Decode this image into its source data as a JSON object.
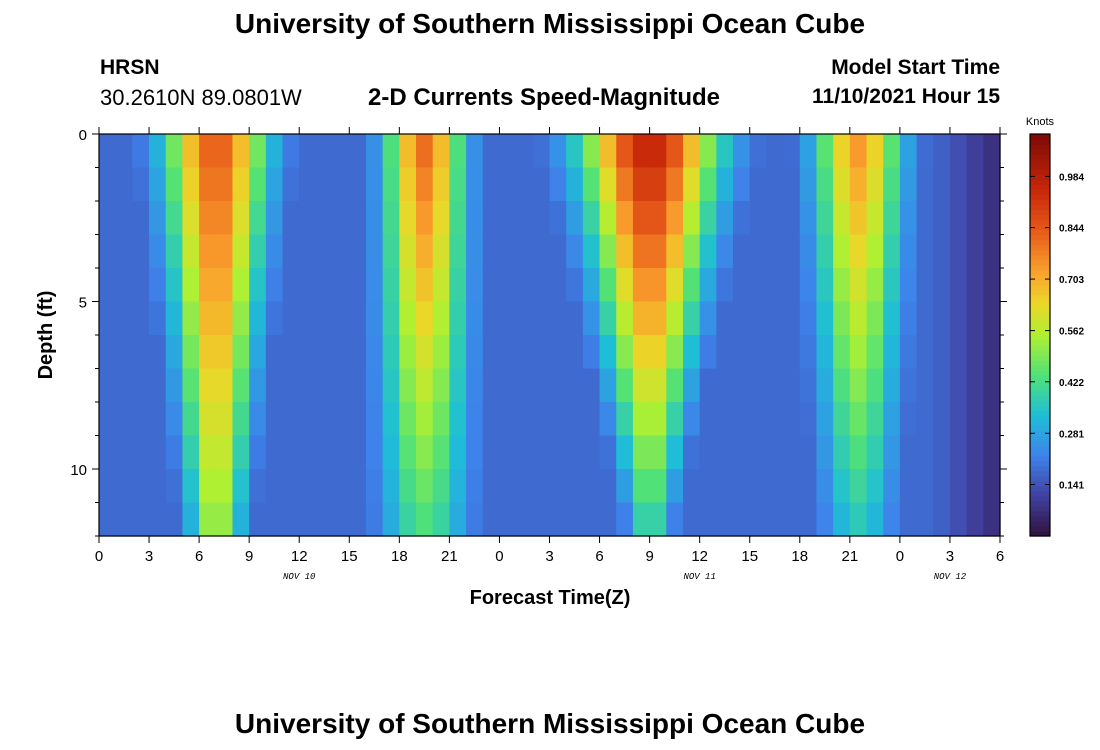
{
  "header": {
    "title": "University of Southern Mississippi Ocean Cube",
    "station": "HRSN",
    "coordinates": "30.2610N  89.0801W",
    "product": "2-D Currents Speed-Magnitude",
    "model_start_label": "Model Start Time",
    "model_start_value": "11/10/2021 Hour 15"
  },
  "footer": {
    "title": "University of Southern Mississippi Ocean Cube"
  },
  "chart_data": {
    "type": "heatmap",
    "xlabel": "Forecast Time(Z)",
    "ylabel": "Depth (ft)",
    "x_range_hours": [
      0,
      54
    ],
    "y_range_ft": [
      0,
      12
    ],
    "x_tick_labels": [
      "0",
      "3",
      "6",
      "9",
      "12",
      "15",
      "18",
      "21",
      "0",
      "3",
      "6",
      "9",
      "12",
      "15",
      "18",
      "21",
      "0",
      "3",
      "6"
    ],
    "day_labels": [
      {
        "hour": 12,
        "label": "NOV 10"
      },
      {
        "hour": 36,
        "label": "NOV 11"
      },
      {
        "hour": 51,
        "label": "NOV 12"
      }
    ],
    "y_ticks": [
      0,
      5,
      10
    ],
    "colorbar": {
      "unit": "Knots",
      "tick_labels": [
        "0.984",
        "0.844",
        "0.703",
        "0.562",
        "0.422",
        "0.281",
        "0.141"
      ],
      "tick_values": [
        0.984,
        0.844,
        0.703,
        0.562,
        0.422,
        0.281,
        0.141
      ],
      "range": [
        0,
        1.1
      ]
    },
    "grid": false,
    "depths_ft": [
      0,
      1,
      2,
      3,
      4,
      5,
      6,
      7,
      8,
      9,
      10,
      11,
      12
    ],
    "speed_features": [
      {
        "center_hour": 7,
        "width_at_surface_h": 3.0,
        "width_at_bottom_h": 1.5,
        "peak_surface": 0.85,
        "peak_bottom": 0.55
      },
      {
        "center_hour": 19.5,
        "width_at_surface_h": 2.2,
        "width_at_bottom_h": 2.5,
        "peak_surface": 0.82,
        "peak_bottom": 0.42
      },
      {
        "center_hour": 33,
        "width_at_surface_h": 4.0,
        "width_at_bottom_h": 1.2,
        "peak_surface": 0.98,
        "peak_bottom": 0.4
      },
      {
        "center_hour": 45.5,
        "width_at_surface_h": 2.5,
        "width_at_bottom_h": 2.0,
        "peak_surface": 0.75,
        "peak_bottom": 0.35
      }
    ]
  }
}
